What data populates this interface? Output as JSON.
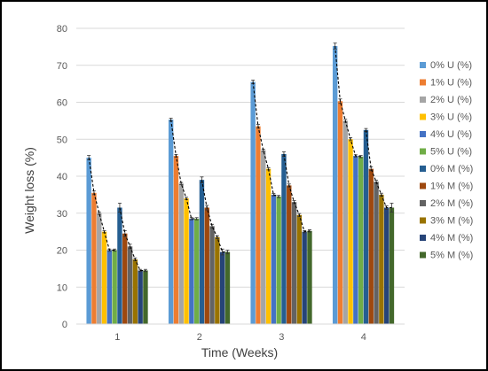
{
  "chart_data": {
    "type": "bar",
    "title": "",
    "xlabel": "Time (Weeks)",
    "ylabel": "Weight loss (%)",
    "ylim": [
      0,
      80
    ],
    "yticks": [
      0,
      10,
      20,
      30,
      40,
      50,
      60,
      70,
      80
    ],
    "grid": "horizontal",
    "legend": "right",
    "categories": [
      "1",
      "2",
      "3",
      "4"
    ],
    "series": [
      {
        "name": "0% U (%)",
        "color": "#5B9BD5",
        "values": [
          45.0,
          55.3,
          65.5,
          75.2
        ],
        "errors": [
          0.6,
          0.4,
          0.5,
          0.8
        ]
      },
      {
        "name": "1% U (%)",
        "color": "#ED7D31",
        "values": [
          35.5,
          45.5,
          53.5,
          60.3
        ],
        "errors": [
          0.5,
          0.4,
          0.5,
          0.6
        ]
      },
      {
        "name": "2% U (%)",
        "color": "#A5A5A5",
        "values": [
          30.0,
          38.0,
          47.0,
          55.0
        ],
        "errors": [
          0.3,
          0.3,
          0.3,
          0.4
        ]
      },
      {
        "name": "3% U (%)",
        "color": "#FFC000",
        "values": [
          25.0,
          34.0,
          42.0,
          50.0
        ],
        "errors": [
          0.3,
          0.3,
          0.3,
          0.4
        ]
      },
      {
        "name": "4% U (%)",
        "color": "#4472C4",
        "values": [
          20.0,
          28.5,
          35.0,
          45.5
        ],
        "errors": [
          0.3,
          0.3,
          0.3,
          0.3
        ]
      },
      {
        "name": "5% U (%)",
        "color": "#70AD47",
        "values": [
          20.0,
          28.5,
          34.5,
          45.3
        ],
        "errors": [
          0.3,
          0.3,
          0.3,
          0.3
        ]
      },
      {
        "name": "0% M (%)",
        "color": "#255E91",
        "values": [
          31.5,
          39.0,
          46.0,
          52.5
        ],
        "errors": [
          1.2,
          0.8,
          0.6,
          0.4
        ]
      },
      {
        "name": "1% M (%)",
        "color": "#9E480E",
        "values": [
          24.5,
          31.5,
          37.5,
          42.0
        ],
        "errors": [
          0.8,
          0.6,
          0.4,
          0.5
        ]
      },
      {
        "name": "2% M (%)",
        "color": "#636363",
        "values": [
          21.0,
          26.5,
          33.0,
          38.5
        ],
        "errors": [
          0.6,
          0.5,
          0.4,
          0.4
        ]
      },
      {
        "name": "3% M (%)",
        "color": "#997300",
        "values": [
          17.5,
          23.5,
          29.5,
          35.0
        ],
        "errors": [
          0.4,
          0.4,
          0.4,
          0.4
        ]
      },
      {
        "name": "4% M (%)",
        "color": "#264478",
        "values": [
          14.5,
          19.5,
          25.0,
          31.5
        ],
        "errors": [
          0.3,
          0.8,
          0.3,
          0.5
        ]
      },
      {
        "name": "5% M (%)",
        "color": "#43682B",
        "values": [
          14.5,
          19.5,
          25.2,
          31.5
        ],
        "errors": [
          0.3,
          0.5,
          0.3,
          1.2
        ]
      }
    ],
    "trend_lines": "dashed black line connecting bar tops within each U group and each M group"
  }
}
